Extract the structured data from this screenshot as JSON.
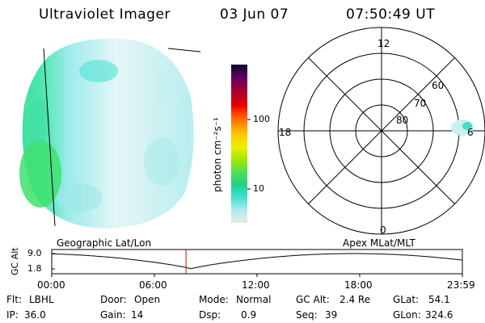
{
  "header": {
    "instrument": "Ultraviolet Imager",
    "date": "03 Jun 07",
    "time": "07:50:49 UT"
  },
  "colorbar": {
    "unit_label": "photon cm⁻²s⁻¹",
    "tick_100": "100",
    "tick_10": "10",
    "scale": "log",
    "colors": [
      "#e8e8e8",
      "#c8f0f0",
      "#a8e8e8",
      "#40e0d0",
      "#20d0a0",
      "#40e060",
      "#80e020",
      "#c0f000",
      "#f0f000",
      "#ffc000",
      "#ff8000",
      "#ff4000",
      "#e00000",
      "#c00020",
      "#900040",
      "#600060",
      "#300050",
      "#100030"
    ]
  },
  "polar": {
    "mlt_12": "12",
    "mlt_18": "18",
    "mlt_6": "6",
    "mlt_0": "0",
    "lat_60": "60",
    "lat_70": "70",
    "lat_80": "80"
  },
  "labels": {
    "geo": "Geographic Lat/Lon",
    "apex": "Apex  MLat/MLT",
    "axis_title": "GC Alt",
    "y_max": "9.0",
    "y_min": "1.8"
  },
  "time_axis": [
    "00:00",
    "06:00",
    "12:00",
    "18:00",
    "23:59"
  ],
  "status": {
    "row1": [
      {
        "key": "Flt:",
        "value": "LBHL"
      },
      {
        "key": "Door:",
        "value": "Open"
      },
      {
        "key": "Mode:",
        "value": "Normal"
      },
      {
        "key": "GC Alt:",
        "value": "2.4 Re"
      },
      {
        "key": "GLat:",
        "value": "54.1"
      }
    ],
    "row2": [
      {
        "key": "IP:",
        "value": "36.0"
      },
      {
        "key": "Gain:",
        "value": "14"
      },
      {
        "key": "Dsp:",
        "value": "0.9"
      },
      {
        "key": "Seq:",
        "value": "39"
      },
      {
        "key": "GLon:",
        "value": "324.6"
      }
    ]
  },
  "orbit": {
    "current_time_hours": 7.85,
    "alt_max": 9.0,
    "alt_min": 1.8
  }
}
